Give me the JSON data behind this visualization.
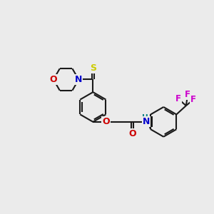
{
  "bg_color": "#ebebeb",
  "bond_color": "#1a1a1a",
  "S_color": "#cccc00",
  "N_color": "#0000cc",
  "O_color": "#cc0000",
  "NH_color": "#008080",
  "F_color": "#cc00cc",
  "line_width": 1.5,
  "figsize": [
    3.0,
    3.0
  ],
  "dpi": 100,
  "xlim": [
    0,
    12
  ],
  "ylim": [
    1,
    9
  ]
}
